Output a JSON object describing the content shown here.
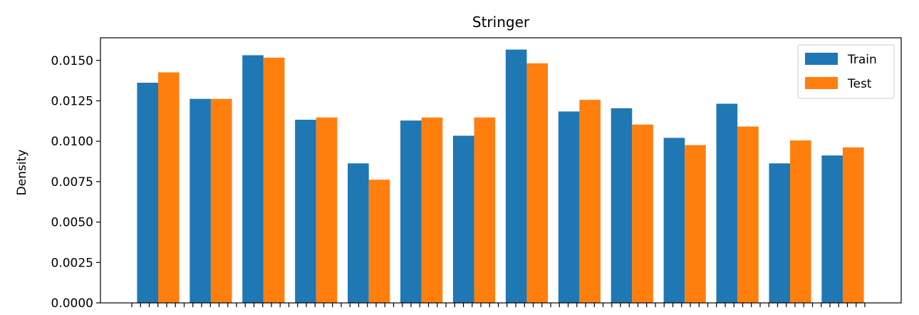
{
  "chart_data": {
    "type": "bar",
    "title": "Stringer",
    "xlabel": "",
    "ylabel": "Density",
    "ylim": [
      0,
      0.0164
    ],
    "yticks": [
      "0.0000",
      "0.0025",
      "0.0050",
      "0.0075",
      "0.0100",
      "0.0125",
      "0.0150"
    ],
    "categories": [
      "",
      "",
      "",
      "",
      "",
      "",
      "",
      "",
      "",
      "",
      "",
      "",
      "",
      ""
    ],
    "series": [
      {
        "name": "Train",
        "color": "#1f77b4",
        "values": [
          0.01362,
          0.01262,
          0.01532,
          0.01133,
          0.00863,
          0.01128,
          0.01034,
          0.01567,
          0.01184,
          0.01204,
          0.01021,
          0.01232,
          0.00863,
          0.00912
        ]
      },
      {
        "name": "Test",
        "color": "#ff7f0e",
        "values": [
          0.01426,
          0.01262,
          0.01517,
          0.01147,
          0.00762,
          0.01147,
          0.01147,
          0.01482,
          0.01256,
          0.01103,
          0.00976,
          0.01091,
          0.01005,
          0.00962
        ]
      }
    ],
    "legend": {
      "position": "top-right"
    },
    "grid": false
  }
}
